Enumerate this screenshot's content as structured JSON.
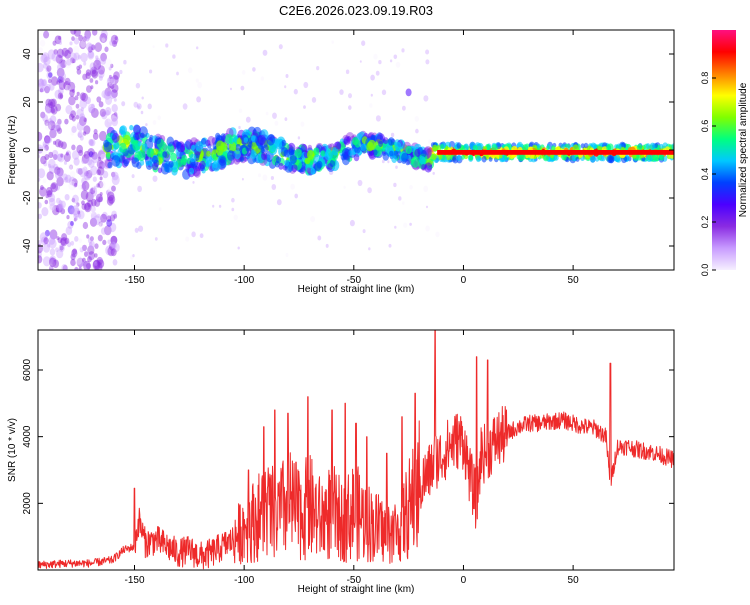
{
  "title": "C2E6.2026.023.09.19.R03",
  "colors": {
    "signal": "#ee2a2a",
    "band_core": "#ff0000",
    "text": "#000000",
    "axis": "#000000"
  },
  "chart_data": [
    {
      "type": "heatmap",
      "name": "spectrogram",
      "xlabel": "Height of straight line (km)",
      "ylabel": "Frequency (Hz)",
      "xlim": [
        -194,
        96
      ],
      "ylim": [
        -50,
        50
      ],
      "xticks": [
        -150,
        -100,
        -50,
        0,
        50
      ],
      "xtick_labels": [
        "-150",
        "-100",
        "-50",
        "0",
        "50"
      ],
      "yticks": [
        -40,
        -20,
        0,
        20,
        40
      ],
      "ytick_labels": [
        "-40",
        "-20",
        "0",
        "20",
        "40"
      ],
      "band": {
        "x_start": -163,
        "x_end": 96,
        "center_hz": -1,
        "halfwidth_hz": [
          8,
          3
        ]
      },
      "colorbar": {
        "label": "Normalized spectral amplitude",
        "range": [
          0,
          1
        ],
        "ticks": [
          0.0,
          0.2,
          0.4,
          0.6,
          0.8
        ],
        "tick_labels": [
          "0.0",
          "0.2",
          "0.4",
          "0.6",
          "0.8"
        ],
        "colormap": [
          "#f6f0ff",
          "#c89bff",
          "#8a2be2",
          "#4b00ff",
          "#0040ff",
          "#00c8ff",
          "#00ff80",
          "#80ff00",
          "#ffff00",
          "#ff8000",
          "#ff0000",
          "#ff1080"
        ]
      }
    },
    {
      "type": "line",
      "name": "snr",
      "xlabel": "Height of straight line (km)",
      "ylabel": "SNR (10 * v/v)",
      "xlim": [
        -194,
        96
      ],
      "ylim": [
        0,
        7200
      ],
      "xticks": [
        -150,
        -100,
        -50,
        0,
        50
      ],
      "xtick_labels": [
        "-150",
        "-100",
        "-50",
        "0",
        "50"
      ],
      "yticks": [
        2000,
        4000,
        6000
      ],
      "ytick_labels": [
        "2000",
        "4000",
        "6000"
      ],
      "x": [
        -194,
        -180,
        -170,
        -160,
        -155,
        -150,
        -148,
        -145,
        -140,
        -135,
        -130,
        -125,
        -120,
        -115,
        -110,
        -105,
        -100,
        -95,
        -90,
        -85,
        -80,
        -75,
        -70,
        -65,
        -60,
        -55,
        -50,
        -45,
        -40,
        -35,
        -30,
        -25,
        -22,
        -20,
        -18,
        -15,
        -13,
        -10,
        -8,
        -5,
        -3,
        0,
        3,
        6,
        8,
        10,
        15,
        20,
        25,
        30,
        35,
        40,
        45,
        50,
        55,
        60,
        65,
        67,
        70,
        75,
        80,
        85,
        90,
        96
      ],
      "y": [
        150,
        200,
        200,
        300,
        600,
        700,
        1500,
        800,
        900,
        700,
        500,
        600,
        400,
        500,
        700,
        900,
        1300,
        1500,
        1800,
        1600,
        2000,
        1700,
        1900,
        1500,
        1800,
        1400,
        1800,
        1500,
        1300,
        1100,
        1200,
        1800,
        2200,
        2500,
        2700,
        3000,
        3300,
        3400,
        3600,
        3800,
        3900,
        3900,
        2800,
        2000,
        3500,
        3500,
        3900,
        4100,
        4300,
        4400,
        4400,
        4450,
        4500,
        4400,
        4300,
        4250,
        4000,
        2500,
        3700,
        3700,
        3600,
        3550,
        3450,
        3300
      ],
      "spikes": [
        {
          "x": -150,
          "y": 2450
        },
        {
          "x": -98,
          "y": 3000
        },
        {
          "x": -91,
          "y": 4300
        },
        {
          "x": -86,
          "y": 4800
        },
        {
          "x": -80,
          "y": 4700
        },
        {
          "x": -71,
          "y": 5200
        },
        {
          "x": -60,
          "y": 4800
        },
        {
          "x": -54,
          "y": 5000
        },
        {
          "x": -49,
          "y": 4400
        },
        {
          "x": -44,
          "y": 4000
        },
        {
          "x": -35,
          "y": 3500
        },
        {
          "x": -28,
          "y": 4600
        },
        {
          "x": -22,
          "y": 5300
        },
        {
          "x": -13,
          "y": 7200
        },
        {
          "x": 6,
          "y": 6400
        },
        {
          "x": 11,
          "y": 6300
        },
        {
          "x": 67,
          "y": 6200
        }
      ]
    }
  ]
}
